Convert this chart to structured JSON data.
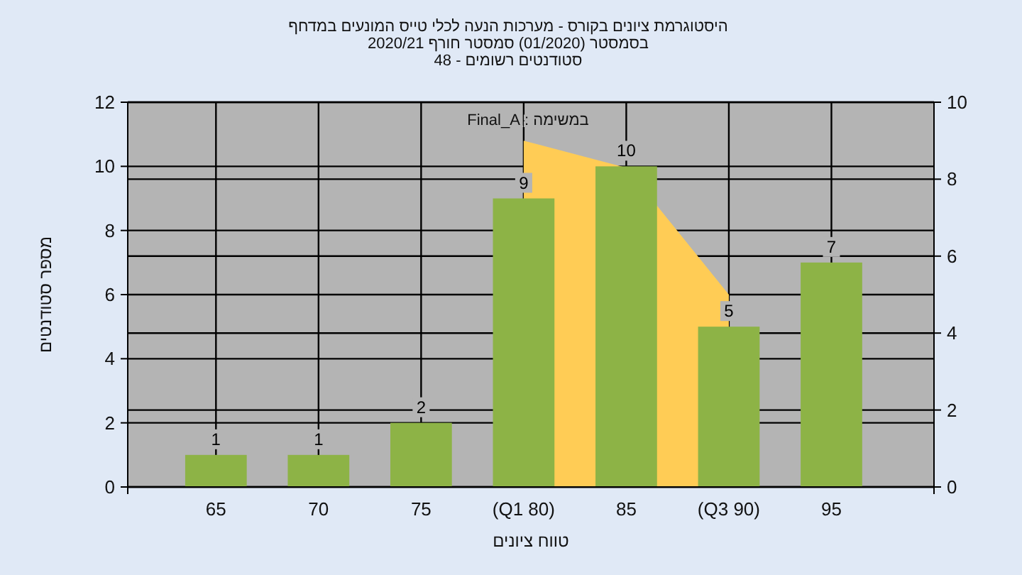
{
  "chart_data": {
    "type": "bar",
    "title": "היסטוגרמת ציונים בקורס - מערכות הנעה לכלי טייס המונעים במדחף",
    "subtitle": "בסמסטר (01/2020) סמסטר חורף 2020/21",
    "annotations": [
      "סטודנטים רשומים - 48"
    ],
    "xlabel": "טווח ציונים",
    "ylabel": "מספר סטודנטים",
    "categories": [
      "65",
      "70",
      "75",
      "(Q1 80)",
      "85",
      "(Q3 90)",
      "95"
    ],
    "series": [
      {
        "type": "area",
        "axis": "y2",
        "color": "#ffcc55",
        "values": [
          null,
          null,
          null,
          9,
          8.3,
          5,
          null
        ]
      },
      {
        "name": "במשימה : Final_A",
        "type": "bar",
        "color": "#8db346",
        "values": [
          1,
          1,
          2,
          9,
          10,
          5,
          7
        ],
        "value_labels": [
          "1",
          "1",
          "2",
          "9",
          "10",
          "5",
          "7"
        ]
      }
    ],
    "ylim": [
      0,
      12
    ],
    "yticks": [
      0,
      2,
      4,
      6,
      8,
      10,
      12
    ],
    "y2lim": [
      0,
      10
    ],
    "y2ticks": [
      0,
      2,
      4,
      6,
      8,
      10
    ],
    "grid": true
  }
}
